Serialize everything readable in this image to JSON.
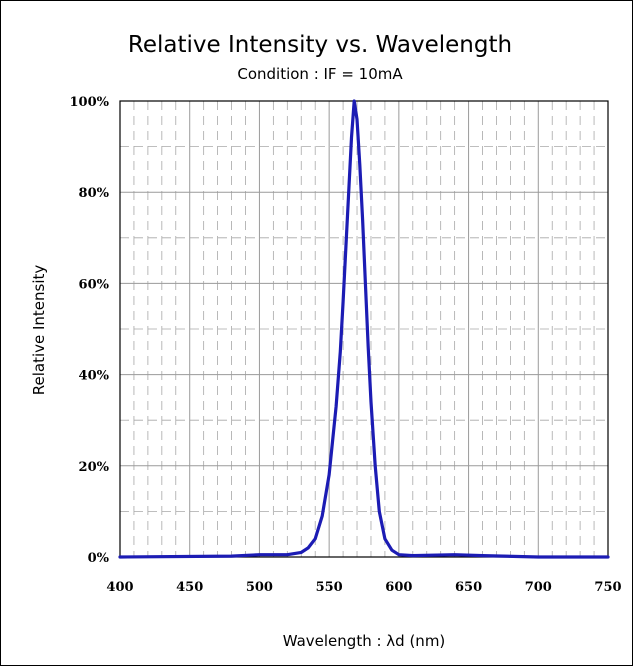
{
  "chart_data": {
    "type": "line",
    "title": "Relative Intensity vs. Wavelength",
    "subtitle": "Condition : IF = 10mA",
    "xlabel": "Wavelength : λd (nm)",
    "ylabel": "Relative Intensity",
    "xlim": [
      400,
      750
    ],
    "ylim": [
      0,
      100
    ],
    "x_ticks": [
      "400",
      "450",
      "500",
      "550",
      "600",
      "650",
      "700",
      "750"
    ],
    "y_ticks": [
      "0%",
      "20%",
      "40%",
      "60%",
      "80%",
      "100%"
    ],
    "grid": true,
    "legend": "none",
    "series_color": "#1c1cb4",
    "series": [
      {
        "x": [
          400,
          480,
          500,
          520,
          530,
          535,
          540,
          545,
          550,
          555,
          558,
          560,
          562,
          564,
          566,
          568,
          570,
          572,
          574,
          576,
          578,
          580,
          583,
          586,
          590,
          595,
          600,
          610,
          640,
          660,
          700,
          750
        ],
        "y": [
          0,
          0.2,
          0.5,
          0.5,
          1,
          2,
          4,
          9,
          18,
          33,
          45,
          56,
          68,
          80,
          92,
          100,
          96,
          86,
          74,
          60,
          46,
          34,
          20,
          10,
          4,
          1.5,
          0.5,
          0.3,
          0.5,
          0.3,
          0,
          0
        ]
      }
    ]
  }
}
